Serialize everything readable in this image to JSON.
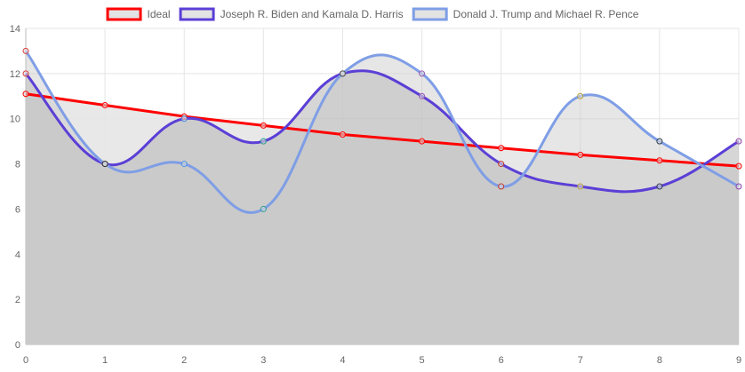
{
  "chart_data": {
    "type": "line",
    "x": [
      0,
      1,
      2,
      3,
      4,
      5,
      6,
      7,
      8,
      9
    ],
    "xlim": [
      0,
      9
    ],
    "ylim": [
      0,
      14
    ],
    "yticks": [
      0,
      2,
      4,
      6,
      8,
      10,
      12,
      14
    ],
    "grid": true,
    "legend_position": "top",
    "series": [
      {
        "name": "Ideal",
        "color": "#ff0000",
        "values": [
          11.1,
          10.6,
          10.1,
          9.7,
          9.3,
          9.0,
          8.7,
          8.4,
          8.15,
          7.9
        ],
        "smooth": false,
        "fill": "rgba(230,230,230,0.9)"
      },
      {
        "name": "Joseph R. Biden and Kamala D. Harris",
        "color": "#5b3fd6",
        "values": [
          12,
          8,
          10,
          9,
          12,
          11,
          8,
          7,
          7,
          9
        ],
        "smooth": true,
        "fill": "rgba(180,180,180,0.55)"
      },
      {
        "name": "Donald J. Trump and Michael R. Pence",
        "color": "#7f9ee6",
        "values": [
          13,
          8,
          8,
          6,
          12,
          12,
          7,
          11,
          9,
          7
        ],
        "smooth": true,
        "fill": "rgba(200,200,200,0.45)"
      }
    ],
    "point_colors": [
      "#e03a3a",
      "#333333",
      "#4a90e2",
      "#2a9d8f",
      "#555555",
      "#9b59b6",
      "#c0392b",
      "#b9a23a",
      "#2c3e50",
      "#8e44ad"
    ]
  }
}
